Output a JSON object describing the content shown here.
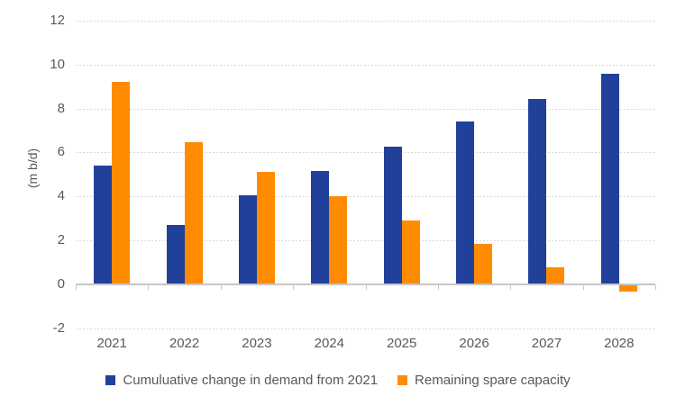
{
  "chart_data": {
    "type": "bar",
    "title": "",
    "xlabel": "",
    "ylabel": "(m b/d)",
    "categories": [
      "2021",
      "2022",
      "2023",
      "2024",
      "2025",
      "2026",
      "2027",
      "2028"
    ],
    "series": [
      {
        "name": "Cumuluative change in demand from 2021",
        "color": "#21409A",
        "values": [
          5.4,
          2.7,
          4.05,
          5.15,
          6.25,
          7.4,
          8.45,
          9.6
        ]
      },
      {
        "name": "Remaining spare capacity",
        "color": "#FF8C00",
        "values": [
          9.2,
          6.45,
          5.1,
          4.0,
          2.9,
          1.85,
          0.75,
          -0.35
        ]
      }
    ],
    "ylim": [
      -2,
      12
    ],
    "yticks": [
      12,
      10,
      8,
      6,
      4,
      2,
      0,
      -2
    ],
    "grid": true,
    "legend_position": "bottom",
    "colors": {
      "grid": "#D9D9D9",
      "axis": "#C6C6C6",
      "text": "#595959",
      "background": "#FFFFFF"
    }
  }
}
